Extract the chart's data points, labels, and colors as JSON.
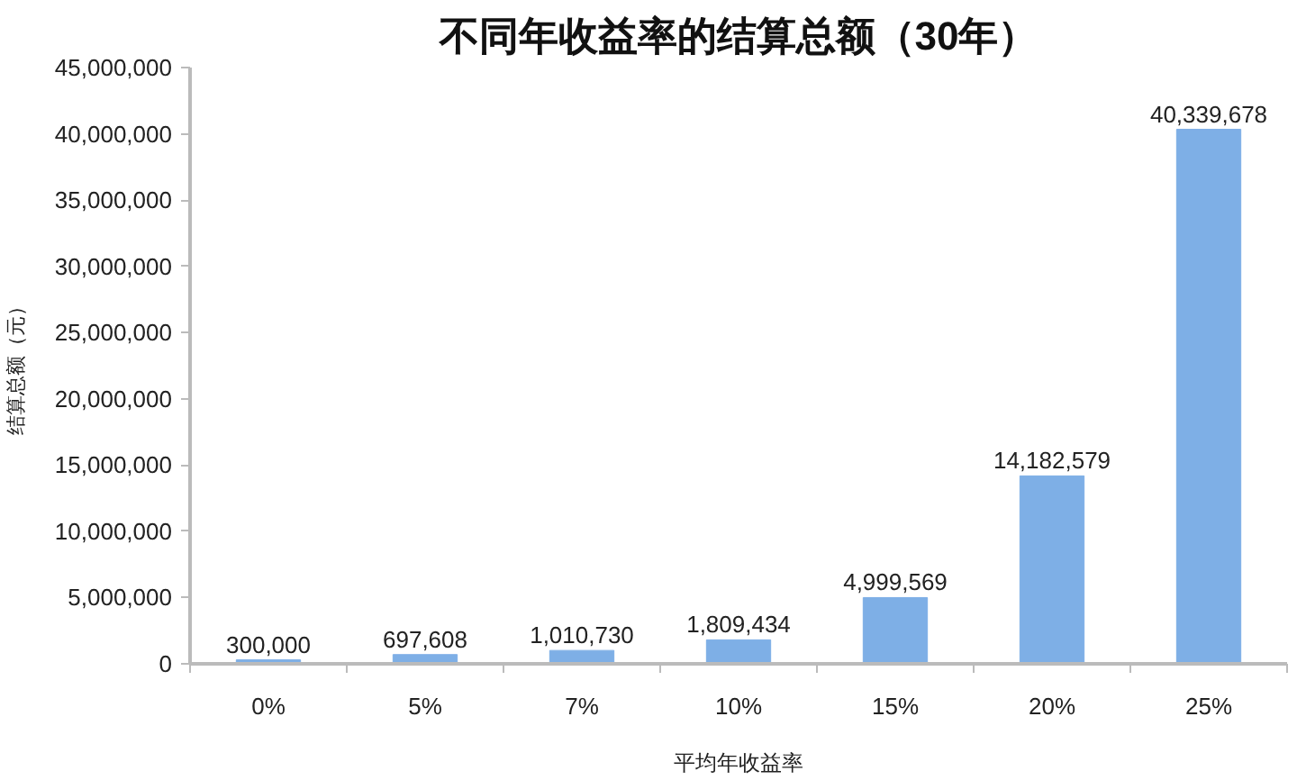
{
  "chart_data": {
    "type": "bar",
    "title": "不同年收益率的结算总额（30年）",
    "xlabel": "平均年收益率",
    "ylabel": "结算总额（元）",
    "categories": [
      "0%",
      "5%",
      "7%",
      "10%",
      "15%",
      "20%",
      "25%"
    ],
    "values": [
      300000,
      697608,
      1010730,
      1809434,
      4999569,
      14182579,
      40339678
    ],
    "value_labels": [
      "300,000",
      "697,608",
      "1,010,730",
      "1,809,434",
      "4,999,569",
      "14,182,579",
      "40,339,678"
    ],
    "color": "#7eafe6",
    "ylim": [
      0,
      45000000
    ],
    "yticks": [
      {
        "value": 0,
        "label": "0"
      },
      {
        "value": 5000000,
        "label": "5,000,000"
      },
      {
        "value": 10000000,
        "label": "10,000,000"
      },
      {
        "value": 15000000,
        "label": "15,000,000"
      },
      {
        "value": 20000000,
        "label": "20,000,000"
      },
      {
        "value": 25000000,
        "label": "25,000,000"
      },
      {
        "value": 30000000,
        "label": "30,000,000"
      },
      {
        "value": 35000000,
        "label": "35,000,000"
      },
      {
        "value": 40000000,
        "label": "40,000,000"
      },
      {
        "value": 45000000,
        "label": "45,000,000"
      }
    ],
    "grid": false
  }
}
